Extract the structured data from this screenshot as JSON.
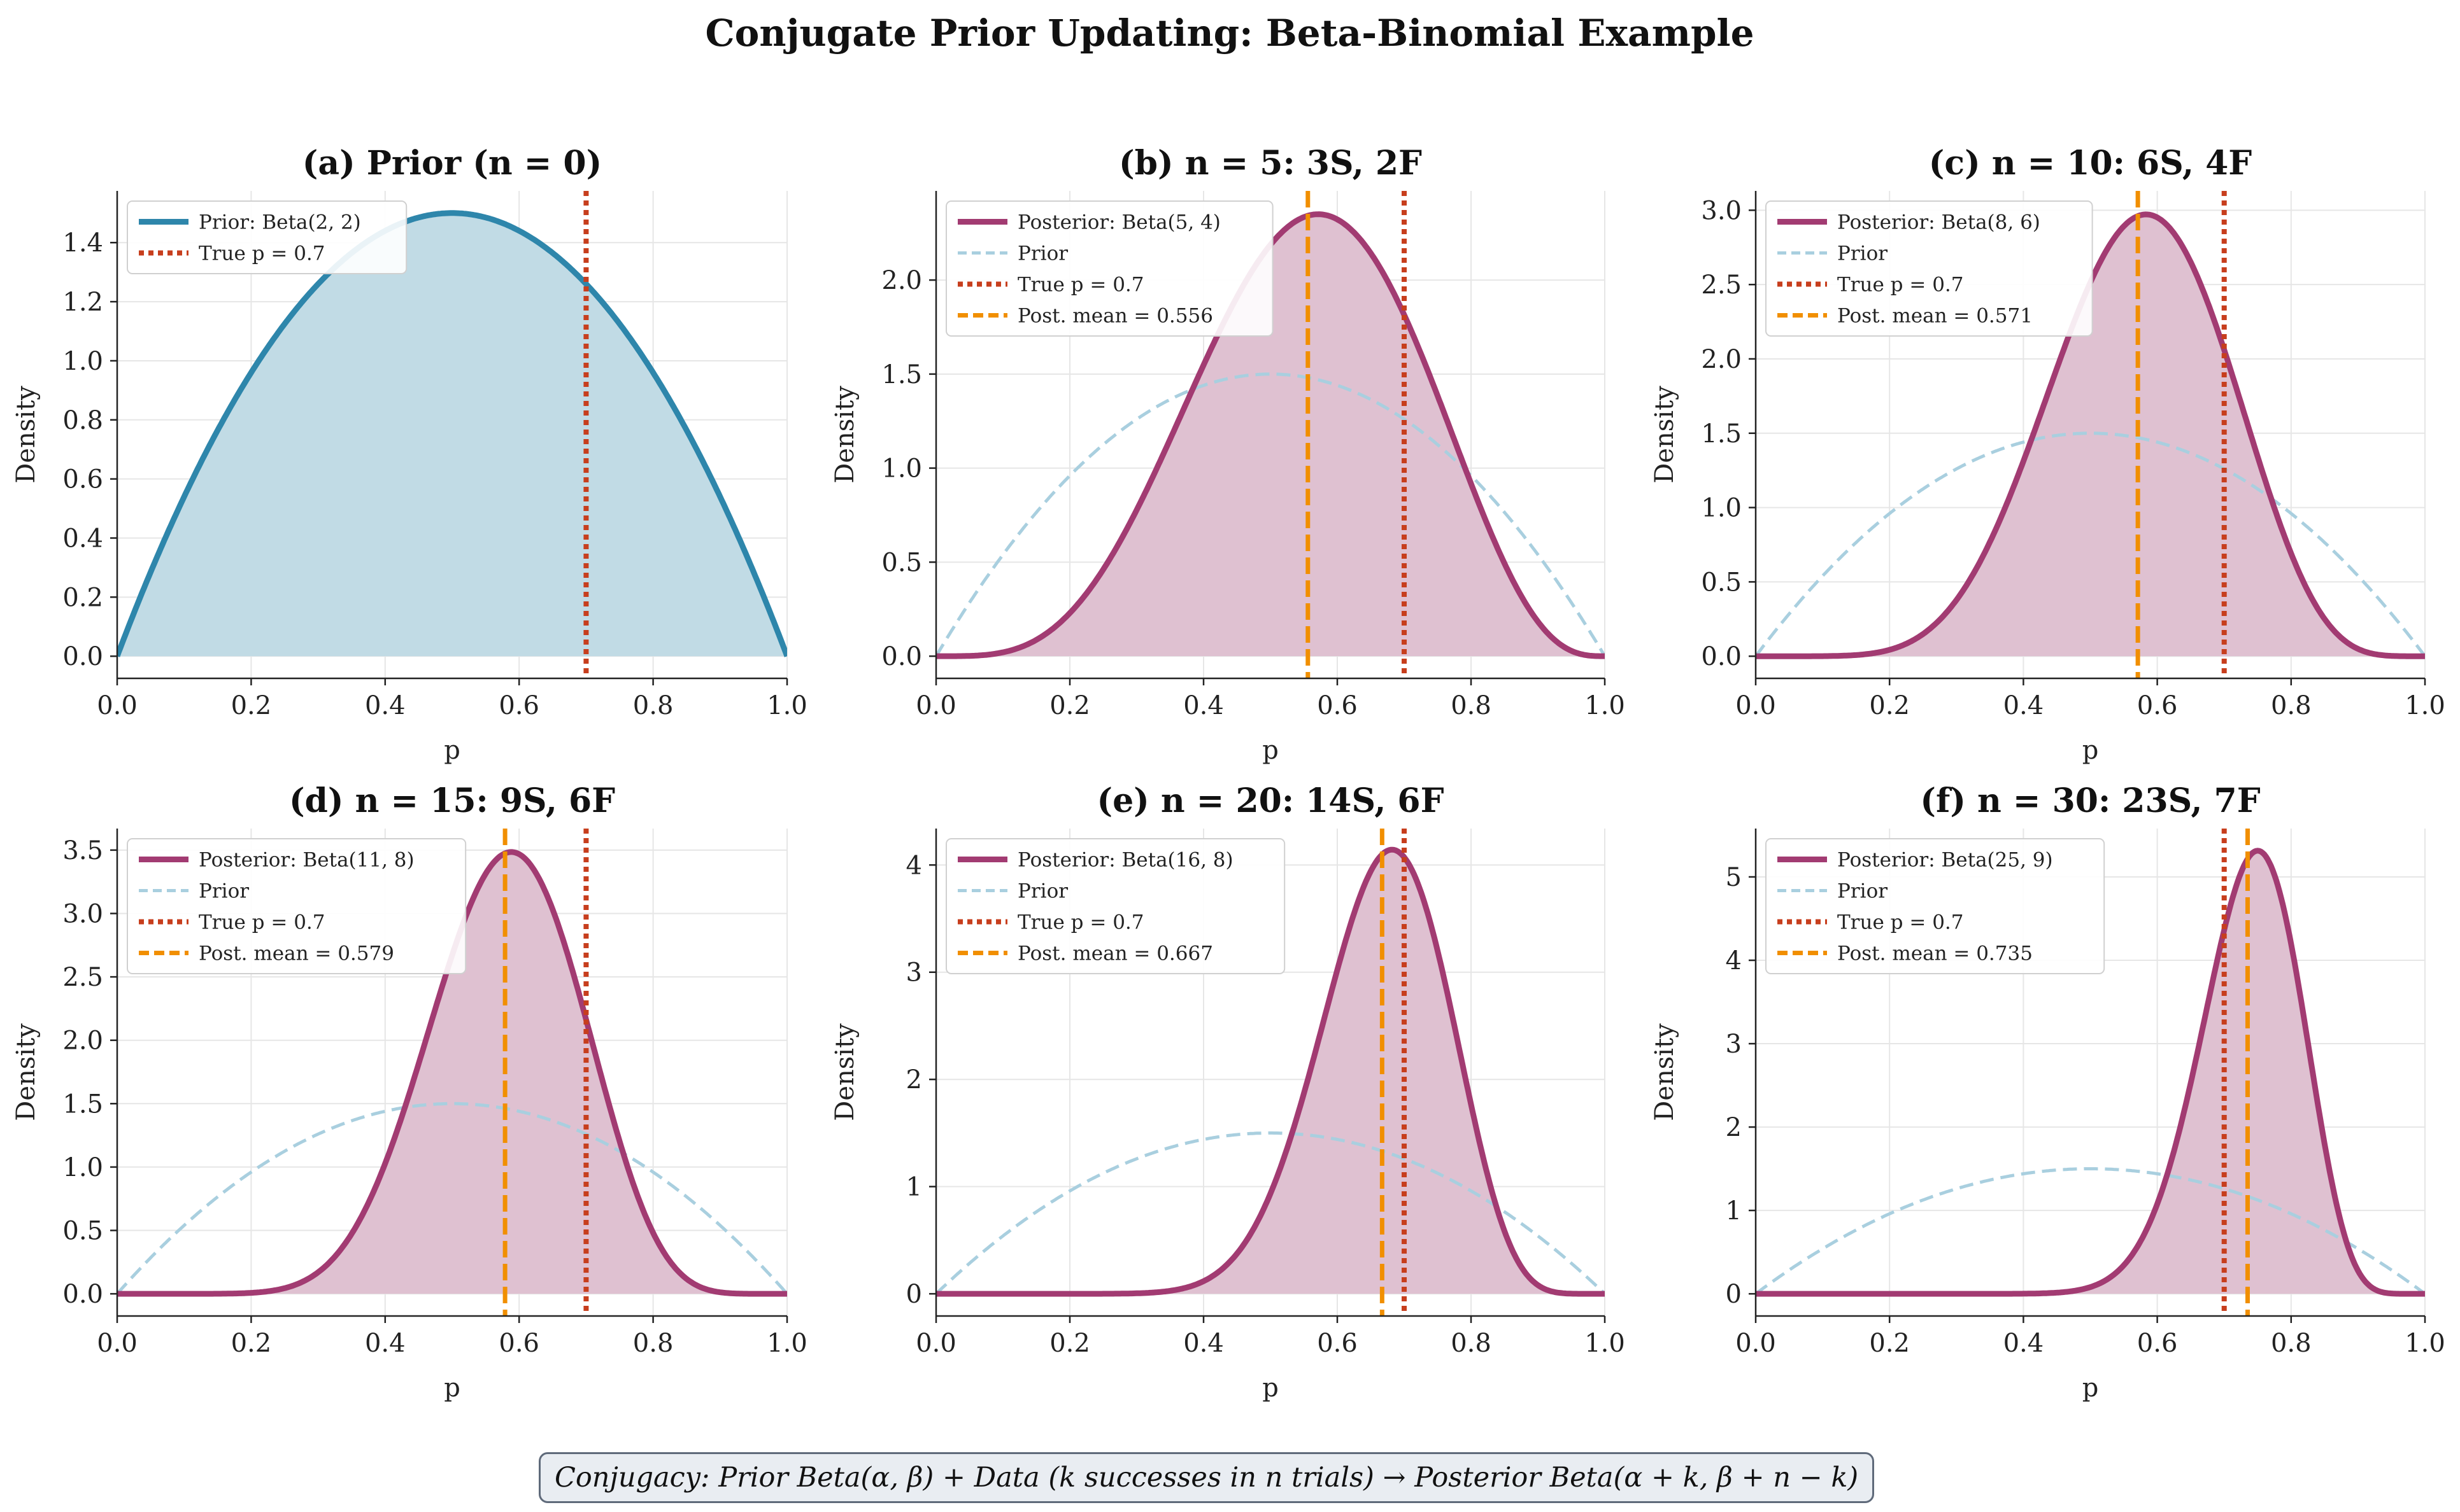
{
  "figure_title": "Conjugate Prior Updating: Beta-Binomial Example",
  "footer_note": "Conjugacy: Prior Beta(α, β) + Data (k successes in n trials) → Posterior Beta(α + k, β + n − k)",
  "colors": {
    "prior": "#2e86ab",
    "prior_fill": "#c1dbe5",
    "prior_dashed": "#a9cfdf",
    "posterior": "#a23b72",
    "posterior_fill": "#dfc1d1",
    "true_p": "#c73e1d",
    "post_mean": "#f18f01"
  },
  "chart_data": [
    {
      "type": "line",
      "title": "(a) Prior (n = 0)",
      "xlabel": "p",
      "ylabel": "Density",
      "xlim": [
        0,
        1
      ],
      "ylim": [
        -0.075,
        1.575
      ],
      "xticks": [
        0.0,
        0.2,
        0.4,
        0.6,
        0.8,
        1.0
      ],
      "yticks": [
        0.0,
        0.2,
        0.4,
        0.6,
        0.8,
        1.0,
        1.2,
        1.4
      ],
      "ytick_labels": [
        "0.0",
        "0.2",
        "0.4",
        "0.6",
        "0.8",
        "1.0",
        "1.2",
        "1.4"
      ],
      "prior": {
        "alpha": 2,
        "beta": 2
      },
      "posterior": null,
      "true_p": 0.7,
      "post_mean": null,
      "legend": [
        "Prior: Beta(2, 2)",
        "True p = 0.7"
      ]
    },
    {
      "type": "line",
      "title": "(b) n = 5: 3S, 2F",
      "xlabel": "p",
      "ylabel": "Density",
      "xlim": [
        0,
        1
      ],
      "ylim": [
        -0.118,
        2.474
      ],
      "xticks": [
        0.0,
        0.2,
        0.4,
        0.6,
        0.8,
        1.0
      ],
      "yticks": [
        0.0,
        0.5,
        1.0,
        1.5,
        2.0
      ],
      "ytick_labels": [
        "0.0",
        "0.5",
        "1.0",
        "1.5",
        "2.0"
      ],
      "prior": {
        "alpha": 2,
        "beta": 2
      },
      "posterior": {
        "alpha": 5,
        "beta": 4
      },
      "true_p": 0.7,
      "post_mean": 0.556,
      "legend": [
        "Posterior: Beta(5, 4)",
        "Prior",
        "True p = 0.7",
        "Post. mean = 0.556"
      ]
    },
    {
      "type": "line",
      "title": "(c) n = 10: 6S, 4F",
      "xlabel": "p",
      "ylabel": "Density",
      "xlim": [
        0,
        1
      ],
      "ylim": [
        -0.149,
        3.13
      ],
      "xticks": [
        0.0,
        0.2,
        0.4,
        0.6,
        0.8,
        1.0
      ],
      "yticks": [
        0.0,
        0.5,
        1.0,
        1.5,
        2.0,
        2.5,
        3.0
      ],
      "ytick_labels": [
        "0.0",
        "0.5",
        "1.0",
        "1.5",
        "2.0",
        "2.5",
        "3.0"
      ],
      "prior": {
        "alpha": 2,
        "beta": 2
      },
      "posterior": {
        "alpha": 8,
        "beta": 6
      },
      "true_p": 0.7,
      "post_mean": 0.571,
      "legend": [
        "Posterior: Beta(8, 6)",
        "Prior",
        "True p = 0.7",
        "Post. mean = 0.571"
      ]
    },
    {
      "type": "line",
      "title": "(d) n = 15: 9S, 6F",
      "xlabel": "p",
      "ylabel": "Density",
      "xlim": [
        0,
        1
      ],
      "ylim": [
        -0.175,
        3.67
      ],
      "xticks": [
        0.0,
        0.2,
        0.4,
        0.6,
        0.8,
        1.0
      ],
      "yticks": [
        0.0,
        0.5,
        1.0,
        1.5,
        2.0,
        2.5,
        3.0,
        3.5
      ],
      "ytick_labels": [
        "0.0",
        "0.5",
        "1.0",
        "1.5",
        "2.0",
        "2.5",
        "3.0",
        "3.5"
      ],
      "prior": {
        "alpha": 2,
        "beta": 2
      },
      "posterior": {
        "alpha": 11,
        "beta": 8
      },
      "true_p": 0.7,
      "post_mean": 0.579,
      "legend": [
        "Posterior: Beta(11, 8)",
        "Prior",
        "True p = 0.7",
        "Post. mean = 0.579"
      ]
    },
    {
      "type": "line",
      "title": "(e) n = 20: 14S, 6F",
      "xlabel": "p",
      "ylabel": "Density",
      "xlim": [
        0,
        1
      ],
      "ylim": [
        -0.207,
        4.34
      ],
      "xticks": [
        0.0,
        0.2,
        0.4,
        0.6,
        0.8,
        1.0
      ],
      "yticks": [
        0,
        1,
        2,
        3,
        4
      ],
      "ytick_labels": [
        "0",
        "1",
        "2",
        "3",
        "4"
      ],
      "prior": {
        "alpha": 2,
        "beta": 2
      },
      "posterior": {
        "alpha": 16,
        "beta": 8
      },
      "true_p": 0.7,
      "post_mean": 0.667,
      "legend": [
        "Posterior: Beta(16, 8)",
        "Prior",
        "True p = 0.7",
        "Post. mean = 0.667"
      ]
    },
    {
      "type": "line",
      "title": "(f) n = 30: 23S, 7F",
      "xlabel": "p",
      "ylabel": "Density",
      "xlim": [
        0,
        1
      ],
      "ylim": [
        -0.266,
        5.58
      ],
      "xticks": [
        0.0,
        0.2,
        0.4,
        0.6,
        0.8,
        1.0
      ],
      "yticks": [
        0,
        1,
        2,
        3,
        4,
        5
      ],
      "ytick_labels": [
        "0",
        "1",
        "2",
        "3",
        "4",
        "5"
      ],
      "prior": {
        "alpha": 2,
        "beta": 2
      },
      "posterior": {
        "alpha": 25,
        "beta": 9
      },
      "true_p": 0.7,
      "post_mean": 0.735,
      "legend": [
        "Posterior: Beta(25, 9)",
        "Prior",
        "True p = 0.7",
        "Post. mean = 0.735"
      ]
    }
  ]
}
